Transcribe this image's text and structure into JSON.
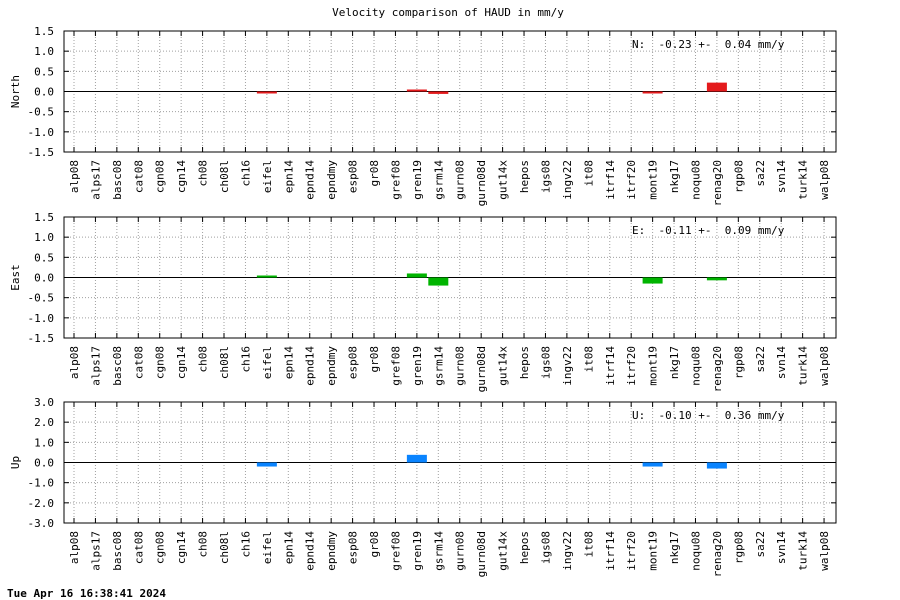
{
  "title": "Velocity comparison of HAUD in mm/y",
  "footer": "Tue Apr 16 16:38:41 2024",
  "chart_data": [
    {
      "type": "bar",
      "ylabel": "North",
      "annotation": "N:  -0.23 +-  0.04 mm/y",
      "color": "#e41a1c",
      "ylim": [
        -1.5,
        1.5
      ],
      "yticks": [
        "1.5",
        "1.0",
        "0.5",
        "0.0",
        "-0.5",
        "-1.0",
        "-1.5"
      ],
      "categories": [
        "alp08",
        "alps17",
        "basc08",
        "cat08",
        "cgn08",
        "cgn14",
        "ch08",
        "ch08l",
        "ch16",
        "eifel",
        "epn14",
        "epnd14",
        "epndmy",
        "esp08",
        "gr08",
        "gref08",
        "gren19",
        "gsrm14",
        "gurn08",
        "gurn08d",
        "gut14x",
        "hepos",
        "igs08",
        "ingv22",
        "it08",
        "itrf14",
        "itrf20",
        "mont19",
        "nkg17",
        "noqu08",
        "renag20",
        "rgp08",
        "sa22",
        "svn14",
        "turk14",
        "walp08"
      ],
      "values": [
        null,
        null,
        null,
        null,
        null,
        null,
        null,
        null,
        null,
        -0.03,
        null,
        null,
        null,
        null,
        null,
        null,
        0.04,
        -0.06,
        null,
        null,
        null,
        null,
        null,
        null,
        null,
        null,
        null,
        -0.02,
        null,
        null,
        0.22,
        null,
        null,
        null,
        null,
        null
      ],
      "grid": true
    },
    {
      "type": "bar",
      "ylabel": "East",
      "annotation": "E:  -0.11 +-  0.09 mm/y",
      "color": "#00b400",
      "ylim": [
        -1.5,
        1.5
      ],
      "yticks": [
        "1.5",
        "1.0",
        "0.5",
        "0.0",
        "-0.5",
        "-1.0",
        "-1.5"
      ],
      "categories": [
        "alp08",
        "alps17",
        "basc08",
        "cat08",
        "cgn08",
        "cgn14",
        "ch08",
        "ch08l",
        "ch16",
        "eifel",
        "epn14",
        "epnd14",
        "epndmy",
        "esp08",
        "gr08",
        "gref08",
        "gren19",
        "gsrm14",
        "gurn08",
        "gurn08d",
        "gut14x",
        "hepos",
        "igs08",
        "ingv22",
        "it08",
        "itrf14",
        "itrf20",
        "mont19",
        "nkg17",
        "noqu08",
        "renag20",
        "rgp08",
        "sa22",
        "svn14",
        "turk14",
        "walp08"
      ],
      "values": [
        null,
        null,
        null,
        null,
        null,
        null,
        null,
        null,
        null,
        0.02,
        null,
        null,
        null,
        null,
        null,
        null,
        0.1,
        -0.2,
        null,
        null,
        null,
        null,
        null,
        null,
        null,
        null,
        null,
        -0.15,
        null,
        null,
        -0.07,
        null,
        null,
        null,
        null,
        null
      ],
      "grid": true
    },
    {
      "type": "bar",
      "ylabel": "Up",
      "annotation": "U:  -0.10 +-  0.36 mm/y",
      "color": "#0a84ff",
      "ylim": [
        -3.0,
        3.0
      ],
      "yticks": [
        "3.0",
        "2.0",
        "1.0",
        "0.0",
        "-1.0",
        "-2.0",
        "-3.0"
      ],
      "categories": [
        "alp08",
        "alps17",
        "basc08",
        "cat08",
        "cgn08",
        "cgn14",
        "ch08",
        "ch08l",
        "ch16",
        "eifel",
        "epn14",
        "epnd14",
        "epndmy",
        "esp08",
        "gr08",
        "gref08",
        "gren19",
        "gsrm14",
        "gurn08",
        "gurn08d",
        "gut14x",
        "hepos",
        "igs08",
        "ingv22",
        "it08",
        "itrf14",
        "itrf20",
        "mont19",
        "nkg17",
        "noqu08",
        "renag20",
        "rgp08",
        "sa22",
        "svn14",
        "turk14",
        "walp08"
      ],
      "values": [
        null,
        null,
        null,
        null,
        null,
        null,
        null,
        null,
        null,
        -0.2,
        null,
        null,
        null,
        null,
        null,
        null,
        0.38,
        null,
        null,
        null,
        null,
        null,
        null,
        null,
        null,
        null,
        null,
        -0.2,
        null,
        null,
        -0.3,
        null,
        null,
        null,
        null,
        null
      ],
      "grid": true
    }
  ]
}
